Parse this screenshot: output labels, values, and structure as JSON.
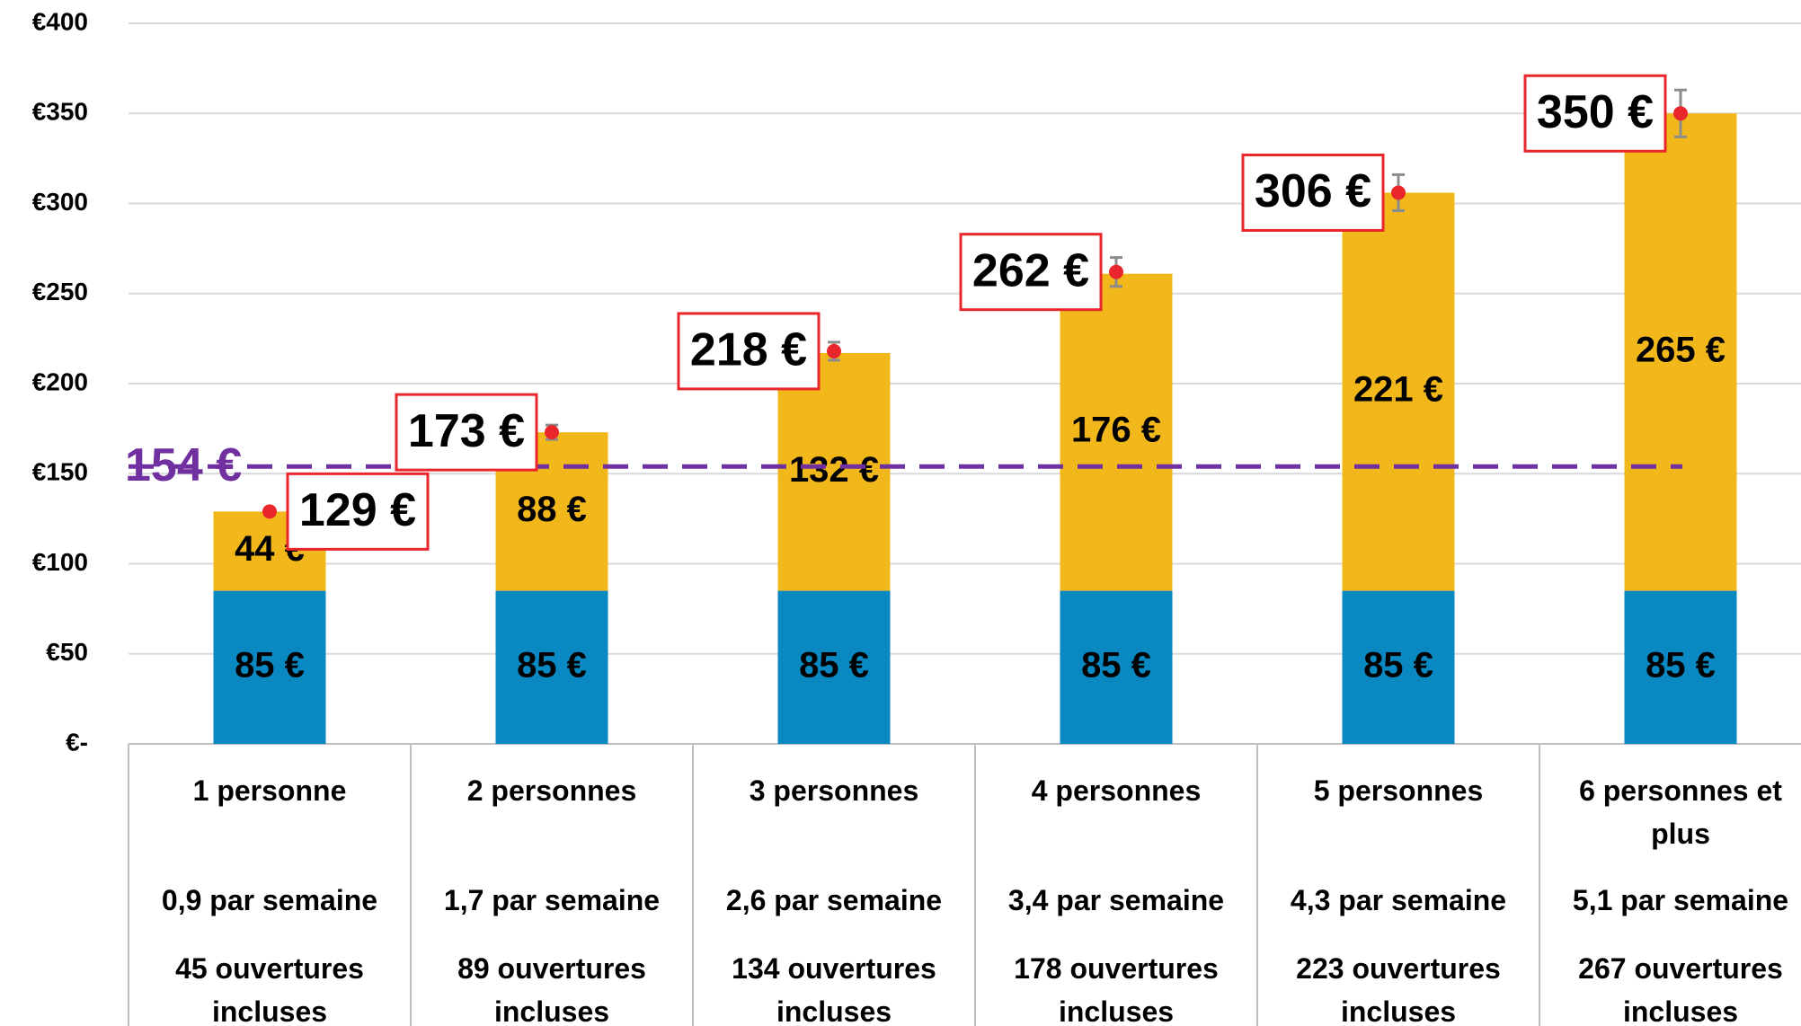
{
  "chart_data": {
    "type": "bar",
    "stacked": true,
    "categories": [
      "1 personne",
      "2 personnes",
      "3 personnes",
      "4 personnes",
      "5 personnes",
      "6 personnes et plus"
    ],
    "frequency": [
      "0,9 par semaine",
      "1,7 par semaine",
      "2,6 par semaine",
      "3,4 par semaine",
      "4,3 par semaine",
      "5,1 par semaine"
    ],
    "openings": [
      "45 ouvertures incluses",
      "89 ouvertures incluses",
      "134 ouvertures incluses",
      "178 ouvertures incluses",
      "223 ouvertures incluses",
      "267 ouvertures incluses"
    ],
    "series": [
      {
        "color": "#0a88c1",
        "values": [
          85,
          85,
          85,
          85,
          85,
          85
        ],
        "value_labels": [
          "85 €",
          "85 €",
          "85 €",
          "85 €",
          "85 €",
          "85 €"
        ]
      },
      {
        "color": "#f2b81b",
        "values": [
          44,
          88,
          132,
          176,
          221,
          265
        ],
        "value_labels": [
          "44 €",
          "88 €",
          "132 €",
          "176 €",
          "221 €",
          "265 €"
        ]
      }
    ],
    "totals": {
      "color": "#e8262b",
      "values": [
        129,
        173,
        218,
        262,
        306,
        350
      ],
      "value_labels": [
        "129 €",
        "173 €",
        "218 €",
        "262 €",
        "306 €",
        "350 €"
      ],
      "errors": [
        1,
        4,
        5,
        8,
        10,
        13
      ]
    },
    "reference": {
      "value": 154,
      "label": "154 €",
      "color": "#7030a0"
    },
    "ylim": [
      0,
      400
    ],
    "yticks": [
      {
        "value": 0,
        "label": "€-"
      },
      {
        "value": 50,
        "label": "€50"
      },
      {
        "value": 100,
        "label": "€100"
      },
      {
        "value": 150,
        "label": "€150"
      },
      {
        "value": 200,
        "label": "€200"
      },
      {
        "value": 250,
        "label": "€250"
      },
      {
        "value": 300,
        "label": "€300"
      },
      {
        "value": 350,
        "label": "€350"
      },
      {
        "value": 400,
        "label": "€400"
      }
    ],
    "grid": true
  }
}
